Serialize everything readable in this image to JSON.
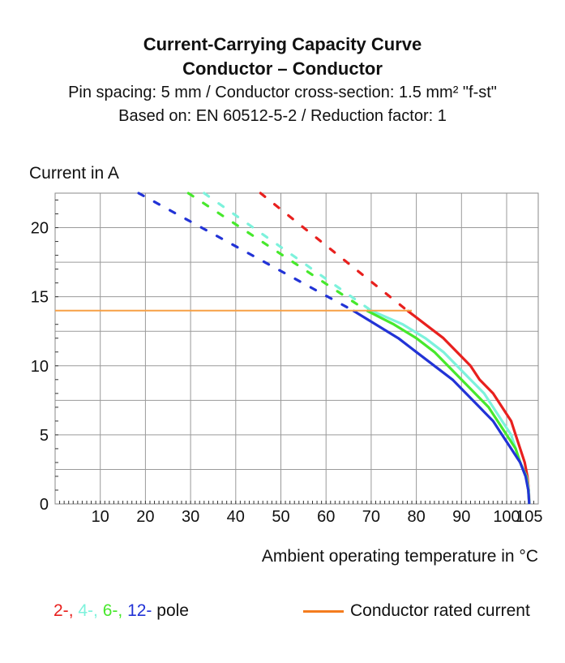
{
  "chart_data": {
    "type": "line",
    "title": "Current-Carrying Capacity Curve",
    "subtitle_lines": [
      "Conductor – Conductor",
      "Pin spacing: 5 mm / Conductor cross-section: 1.5 mm² \"f-st\"",
      "Based on: EN 60512-5-2 / Reduction factor: 1"
    ],
    "xlabel": "Ambient operating temperature in °C",
    "ylabel": "Current in A",
    "xlim": [
      0,
      107
    ],
    "ylim": [
      0,
      22.5
    ],
    "x_ticks": [
      10,
      20,
      30,
      40,
      50,
      60,
      70,
      80,
      90,
      100,
      105
    ],
    "y_ticks": [
      0,
      5,
      10,
      15,
      20
    ],
    "grid": true,
    "legend_position": "bottom",
    "series": [
      {
        "name": "2-",
        "color": "#e8201e",
        "dashed": [
          [
            45.5,
            22.5
          ],
          [
            78,
            14
          ]
        ],
        "solid": [
          [
            78,
            14
          ],
          [
            82,
            13
          ],
          [
            86,
            12
          ],
          [
            89,
            11
          ],
          [
            92,
            10
          ],
          [
            94,
            9
          ],
          [
            97,
            8
          ],
          [
            99,
            7
          ],
          [
            101,
            6
          ],
          [
            102,
            5
          ],
          [
            103,
            4
          ],
          [
            104,
            3
          ],
          [
            104.6,
            2
          ],
          [
            104.9,
            1
          ],
          [
            105,
            0
          ]
        ]
      },
      {
        "name": "4-",
        "color": "#7df2dc",
        "dashed": [
          [
            33,
            22.5
          ],
          [
            70,
            14
          ]
        ],
        "solid": [
          [
            70,
            14
          ],
          [
            77,
            13
          ],
          [
            82,
            12
          ],
          [
            86,
            11
          ],
          [
            89,
            10
          ],
          [
            92,
            9
          ],
          [
            95,
            8
          ],
          [
            97,
            7
          ],
          [
            99,
            6
          ],
          [
            101,
            5
          ],
          [
            102,
            4
          ],
          [
            103,
            3
          ],
          [
            104.4,
            2
          ],
          [
            104.9,
            1
          ],
          [
            105,
            0
          ]
        ]
      },
      {
        "name": "6-",
        "color": "#47e82c",
        "dashed": [
          [
            29.5,
            22.5
          ],
          [
            69,
            14
          ]
        ],
        "solid": [
          [
            69,
            14
          ],
          [
            75,
            13
          ],
          [
            80,
            12
          ],
          [
            84,
            11
          ],
          [
            87,
            10
          ],
          [
            90,
            9
          ],
          [
            93,
            8
          ],
          [
            96,
            7
          ],
          [
            98,
            6
          ],
          [
            100,
            5
          ],
          [
            102,
            4
          ],
          [
            103,
            3
          ],
          [
            104.3,
            2
          ],
          [
            104.8,
            1
          ],
          [
            105,
            0
          ]
        ]
      },
      {
        "name": "12-",
        "color": "#2233d6",
        "dashed": [
          [
            18.5,
            22.5
          ],
          [
            66,
            14
          ]
        ],
        "solid": [
          [
            66,
            14
          ],
          [
            71,
            13
          ],
          [
            76,
            12
          ],
          [
            80,
            11
          ],
          [
            84,
            10
          ],
          [
            88,
            9
          ],
          [
            91,
            8
          ],
          [
            94,
            7
          ],
          [
            97,
            6
          ],
          [
            99,
            5
          ],
          [
            101,
            4
          ],
          [
            103,
            3
          ],
          [
            104.2,
            2
          ],
          [
            104.8,
            1
          ],
          [
            105,
            0
          ]
        ]
      }
    ],
    "rated_current": {
      "name": "Conductor rated current",
      "value": 14,
      "x_end": 79,
      "color": "#f7a046"
    }
  },
  "legend": {
    "pole_labels": [
      "2-",
      ", ",
      "4-",
      ", ",
      "6-",
      ", ",
      "12-",
      " pole"
    ],
    "rated_label": "Conductor rated current",
    "rated_swatch_color": "#f47c1e"
  }
}
